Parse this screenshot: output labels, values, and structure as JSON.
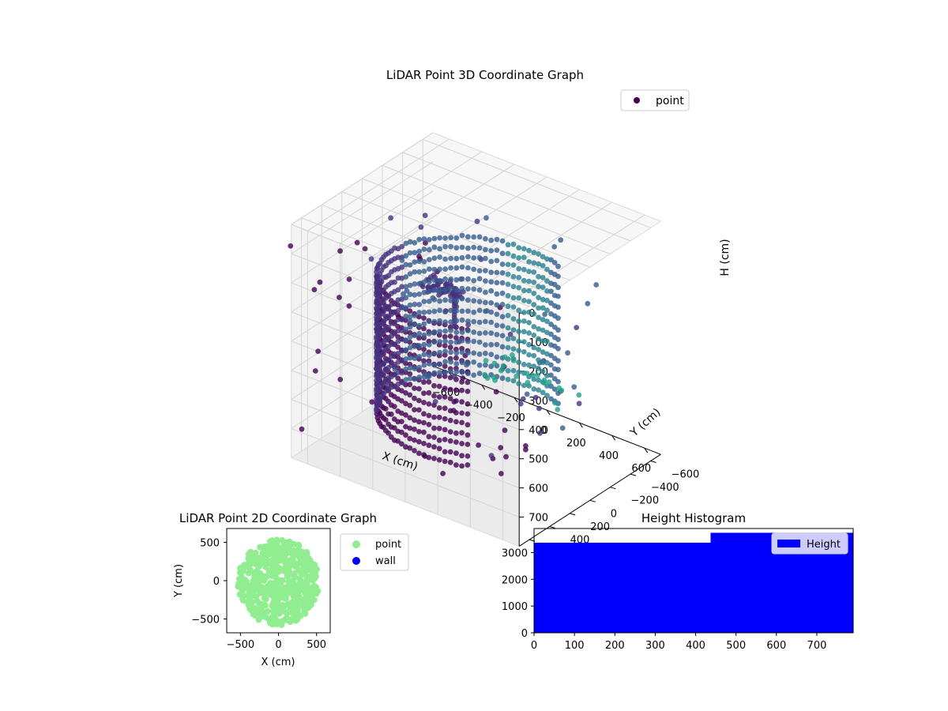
{
  "chart_data": [
    {
      "type": "scatter",
      "title": "LiDAR Point 3D Coordinate Graph",
      "xlabel": "X (cm)",
      "ylabel": "Y (cm)",
      "zlabel": "H (cm)",
      "xlim": [
        -700,
        700
      ],
      "ylim": [
        -700,
        700
      ],
      "zlim": [
        0,
        800
      ],
      "z_inverted": true,
      "x_ticks": [
        -600,
        -400,
        -200,
        0,
        200,
        400,
        600
      ],
      "y_ticks": [
        -600,
        -400,
        -200,
        0,
        200,
        400,
        600
      ],
      "z_ticks": [
        0,
        100,
        200,
        300,
        400,
        500,
        600,
        700
      ],
      "grid": true,
      "legend": {
        "position": "top-right",
        "entries": [
          "point"
        ]
      },
      "colors": {
        "marker": "#440154",
        "pane": "#f2f2f2",
        "grid": "#dddddd"
      },
      "series": [
        {
          "name": "point",
          "color_by": "depth",
          "structures": [
            {
              "kind": "cylindrical wall",
              "center": [
                0,
                0
              ],
              "radius": 520,
              "h_range": [
                200,
                720
              ]
            },
            {
              "kind": "ceiling cluster",
              "center": [
                -60,
                200
              ],
              "h": 180
            }
          ]
        }
      ]
    },
    {
      "type": "scatter",
      "title": "LiDAR Point 2D Coordinate Graph",
      "xlabel": "X (cm)",
      "ylabel": "Y (cm)",
      "xlim": [
        -680,
        680
      ],
      "ylim": [
        -680,
        680
      ],
      "x_ticks": [
        -500,
        0,
        500
      ],
      "y_ticks": [
        -500,
        0,
        500
      ],
      "legend": {
        "position": "outside-right",
        "entries": [
          "point",
          "wall"
        ]
      },
      "series": [
        {
          "name": "point",
          "color": "#90ee90",
          "center": [
            0,
            -20
          ],
          "radius": 560
        },
        {
          "name": "wall",
          "color": "#0000ff",
          "points": []
        }
      ]
    },
    {
      "type": "bar",
      "title": "Height Histogram",
      "xlim": [
        0,
        790
      ],
      "ylim": [
        0,
        3900
      ],
      "x_ticks": [
        0,
        100,
        200,
        300,
        400,
        500,
        600,
        700
      ],
      "y_ticks": [
        0,
        1000,
        2000,
        3000
      ],
      "legend": {
        "position": "top-right",
        "entries": [
          "Height"
        ]
      },
      "series": [
        {
          "name": "Height",
          "color": "#0000ff",
          "bins": [
            {
              "from": 0,
              "to": 437,
              "count": 3370
            },
            {
              "from": 437,
              "to": 790,
              "count": 3740
            }
          ]
        }
      ]
    }
  ]
}
